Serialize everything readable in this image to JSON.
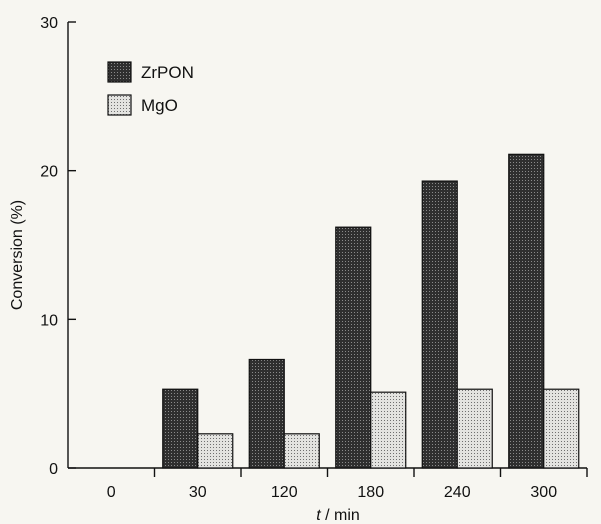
{
  "chart_data": {
    "type": "bar",
    "categories": [
      "0",
      "30",
      "120",
      "180",
      "240",
      "300"
    ],
    "series": [
      {
        "name": "ZrPON",
        "values": [
          0,
          5.3,
          7.3,
          16.2,
          19.3,
          21.1
        ],
        "pattern": "dark"
      },
      {
        "name": "MgO",
        "values": [
          0,
          2.3,
          2.3,
          5.1,
          5.3,
          5.3
        ],
        "pattern": "light"
      }
    ],
    "ylim": [
      0,
      30
    ],
    "yticks": [
      "0",
      "10",
      "20",
      "30"
    ],
    "xlabel_italic": "t",
    "xlabel_rest": " / min",
    "ylabel": "Conversion (%)",
    "legend_position": "top-left",
    "grid": false,
    "colors": {
      "dark_fill": "#2f2f2f",
      "light_fill": "#d9d9d6",
      "axis": "#111111",
      "background": "#f7f6f1"
    }
  }
}
